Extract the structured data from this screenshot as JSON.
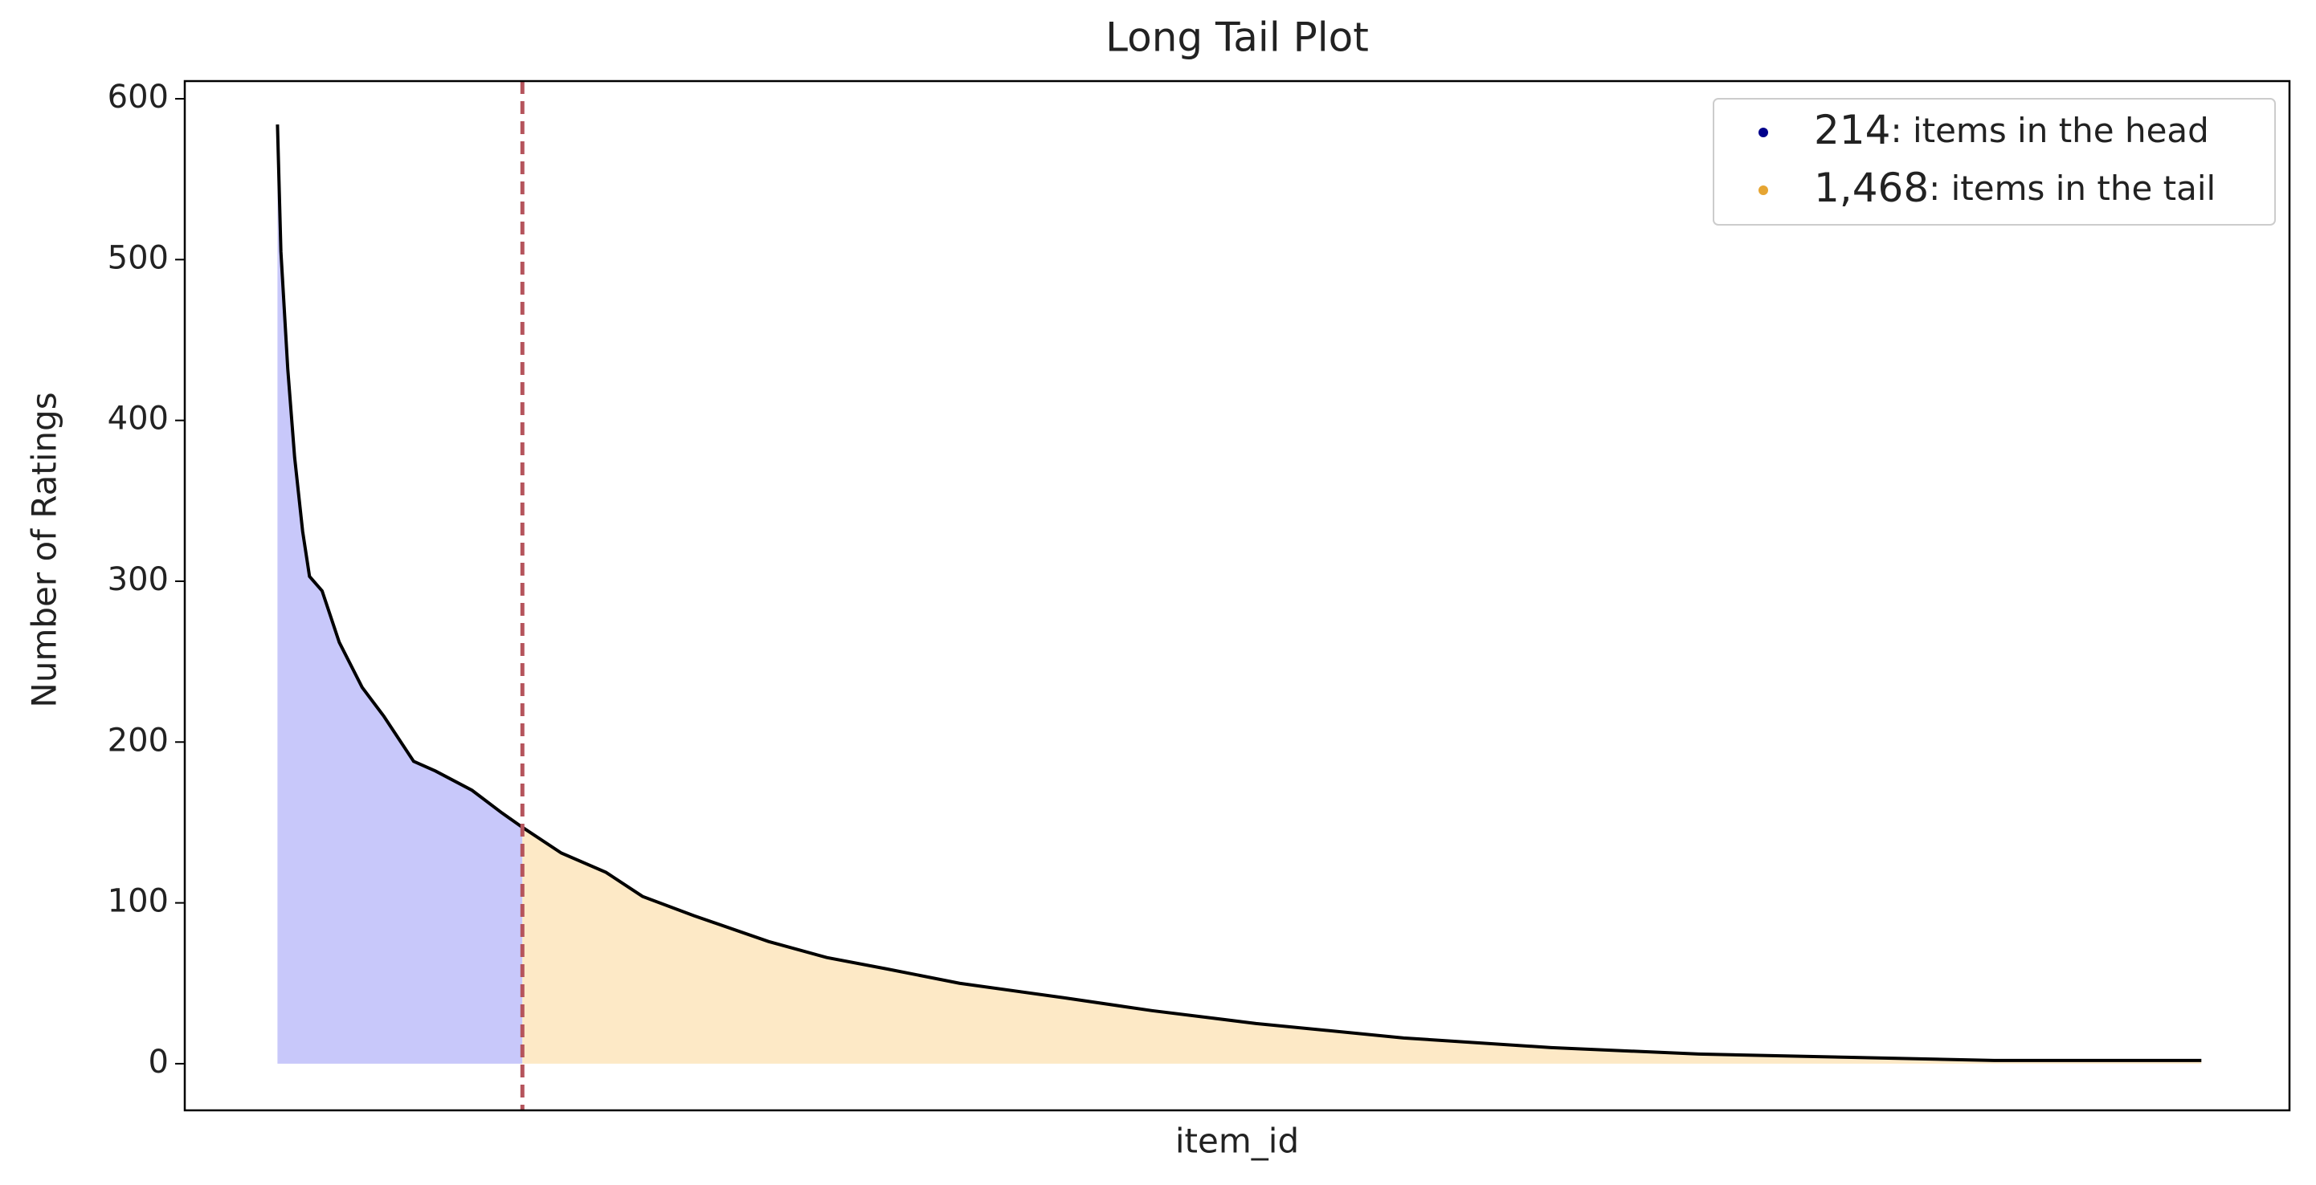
{
  "chart_data": {
    "type": "area",
    "title": "Long Tail Plot",
    "x_label": "item_id",
    "y_label": "Number of Ratings",
    "x": [
      0,
      3,
      9,
      15,
      22,
      28,
      39,
      54,
      74,
      93,
      119,
      138,
      170,
      196,
      214,
      248,
      287,
      319,
      364,
      429,
      480,
      532,
      596,
      687,
      764,
      855,
      984,
      1113,
      1242,
      1371,
      1500,
      1681
    ],
    "values": [
      584,
      505,
      432,
      377,
      331,
      303,
      294,
      262,
      234,
      216,
      188,
      182,
      170,
      156,
      147,
      131,
      119,
      104,
      92,
      76,
      66,
      59,
      50,
      41,
      33,
      25,
      16,
      10,
      6,
      4,
      2,
      2
    ],
    "line_color": "#000000",
    "head_color": "#c8c8fa",
    "tail_color": "#fde9c6",
    "cutoff_x": 214,
    "cutoff_color": "#b5545c",
    "xlim": [
      -81,
      1758
    ],
    "ylim": [
      -29,
      611
    ],
    "yticks": [
      0,
      100,
      200,
      300,
      400,
      500,
      600
    ],
    "legend": [
      {
        "count": "214",
        "text": ": items in the head",
        "color": "#00008b"
      },
      {
        "count": "1,468",
        "text": ": items in the tail",
        "color": "#e6a532"
      }
    ]
  }
}
